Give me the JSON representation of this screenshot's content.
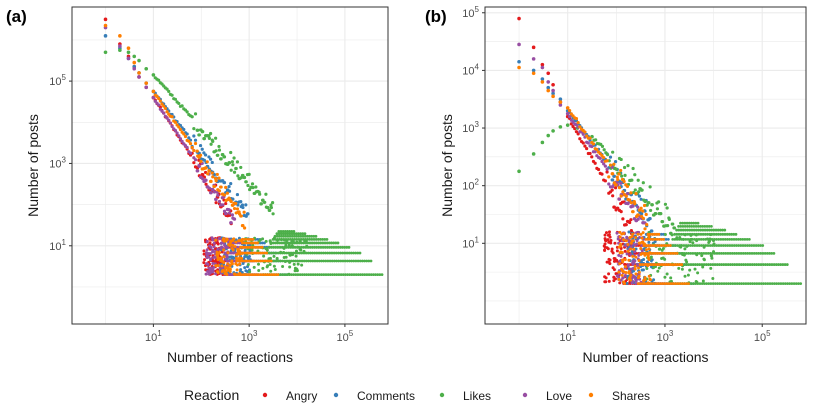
{
  "legend": {
    "title": "Reaction",
    "items": [
      {
        "name": "Angry",
        "color": "#e41a1c"
      },
      {
        "name": "Comments",
        "color": "#377eb8"
      },
      {
        "name": "Likes",
        "color": "#4daf4a"
      },
      {
        "name": "Love",
        "color": "#984ea3"
      },
      {
        "name": "Shares",
        "color": "#ff7f00"
      }
    ]
  },
  "chart_data": [
    {
      "panel_label": "(a)",
      "type": "scatter",
      "scale": "log-log",
      "xlabel": "Number of reactions",
      "ylabel": "Number of posts",
      "xlim_log10": [
        -0.7,
        5.9
      ],
      "ylim_log10": [
        -0.9,
        6.8
      ],
      "x_ticks": [
        {
          "exp": 1,
          "label": "10",
          "sup": "1"
        },
        {
          "exp": 3,
          "label": "10",
          "sup": "3"
        },
        {
          "exp": 5,
          "label": "10",
          "sup": "5"
        }
      ],
      "y_ticks": [
        {
          "exp": 1,
          "label": "10",
          "sup": "1"
        },
        {
          "exp": 3,
          "label": "10",
          "sup": "3"
        },
        {
          "exp": 5,
          "label": "10",
          "sup": "5"
        }
      ],
      "series": [
        {
          "name": "Angry",
          "head": [
            [
              0,
              6.5
            ],
            [
              0.3,
              5.9
            ],
            [
              0.48,
              5.6
            ],
            [
              0.6,
              5.35
            ],
            [
              0.7,
              5.1
            ],
            [
              0.85,
              4.85
            ],
            [
              1.0,
              4.6
            ]
          ],
          "slope": -1.8,
          "tail_end": 2.65,
          "floor_logy": 0.3,
          "max_logx": 3.0,
          "bands": 4
        },
        {
          "name": "Comments",
          "head": [
            [
              0,
              6.1
            ],
            [
              0.3,
              5.8
            ],
            [
              0.48,
              5.55
            ],
            [
              0.6,
              5.35
            ],
            [
              0.7,
              5.2
            ],
            [
              0.85,
              4.95
            ],
            [
              1.0,
              4.75
            ]
          ],
          "slope": -1.5,
          "tail_end": 3.0,
          "floor_logy": 0.3,
          "max_logx": 3.8,
          "bands": 6
        },
        {
          "name": "Likes",
          "head": [
            [
              0,
              5.7
            ],
            [
              0.3,
              5.75
            ],
            [
              0.48,
              5.7
            ],
            [
              0.6,
              5.6
            ],
            [
              0.7,
              5.5
            ],
            [
              0.85,
              5.3
            ],
            [
              1.0,
              5.15
            ]
          ],
          "slope": -1.3,
          "tail_end": 3.5,
          "floor_logy": 0.3,
          "max_logx": 5.8,
          "bands": 9
        },
        {
          "name": "Love",
          "head": [
            [
              0,
              6.3
            ],
            [
              0.3,
              5.85
            ],
            [
              0.48,
              5.55
            ],
            [
              0.6,
              5.3
            ],
            [
              0.7,
              5.1
            ],
            [
              0.85,
              4.85
            ],
            [
              1.0,
              4.6
            ]
          ],
          "slope": -1.75,
          "tail_end": 2.7,
          "floor_logy": 0.3,
          "max_logx": 3.2,
          "bands": 5
        },
        {
          "name": "Shares",
          "head": [
            [
              0,
              6.35
            ],
            [
              0.3,
              6.1
            ],
            [
              0.48,
              5.8
            ],
            [
              0.6,
              5.45
            ],
            [
              0.7,
              5.2
            ],
            [
              0.85,
              4.95
            ],
            [
              1.0,
              4.75
            ]
          ],
          "slope": -1.65,
          "tail_end": 2.9,
          "floor_logy": 0.3,
          "max_logx": 3.6,
          "bands": 6
        }
      ]
    },
    {
      "panel_label": "(b)",
      "type": "scatter",
      "scale": "log-log",
      "xlabel": "Number of reactions",
      "ylabel": "Number of posts",
      "xlim_log10": [
        -0.7,
        5.9
      ],
      "ylim_log10": [
        -0.4,
        5.1
      ],
      "x_ticks": [
        {
          "exp": 1,
          "label": "10",
          "sup": "1"
        },
        {
          "exp": 3,
          "label": "10",
          "sup": "3"
        },
        {
          "exp": 5,
          "label": "10",
          "sup": "5"
        }
      ],
      "y_ticks": [
        {
          "exp": 1,
          "label": "10",
          "sup": "1"
        },
        {
          "exp": 2,
          "label": "10",
          "sup": "2"
        },
        {
          "exp": 3,
          "label": "10",
          "sup": "3"
        },
        {
          "exp": 4,
          "label": "10",
          "sup": "4"
        },
        {
          "exp": 5,
          "label": "10",
          "sup": "5"
        }
      ],
      "series": [
        {
          "name": "Angry",
          "head": [
            [
              0,
              4.9
            ],
            [
              0.3,
              4.4
            ],
            [
              0.48,
              4.1
            ],
            [
              0.6,
              3.95
            ],
            [
              0.7,
              3.75
            ],
            [
              0.85,
              3.45
            ],
            [
              1.0,
              3.2
            ]
          ],
          "slope": -1.45,
          "tail_end": 2.35,
          "floor_logy": 0.3,
          "max_logx": 3.0,
          "bands": 4
        },
        {
          "name": "Comments",
          "head": [
            [
              0,
              4.15
            ],
            [
              0.3,
              4.0
            ],
            [
              0.48,
              3.85
            ],
            [
              0.6,
              3.7
            ],
            [
              0.7,
              3.6
            ],
            [
              0.85,
              3.5
            ],
            [
              1.0,
              3.3
            ]
          ],
          "slope": -1.1,
          "tail_end": 2.75,
          "floor_logy": 0.3,
          "max_logx": 3.6,
          "bands": 6
        },
        {
          "name": "Likes",
          "head": [
            [
              0,
              2.25
            ],
            [
              0.3,
              2.55
            ],
            [
              0.48,
              2.75
            ],
            [
              0.6,
              2.87
            ],
            [
              0.7,
              2.95
            ],
            [
              0.85,
              3.02
            ],
            [
              1.0,
              3.05
            ],
            [
              1.2,
              3.0
            ],
            [
              1.5,
              2.85
            ]
          ],
          "slope": -0.9,
          "tail_end": 3.2,
          "floor_logy": 0.3,
          "max_logx": 5.8,
          "bands": 9
        },
        {
          "name": "Love",
          "head": [
            [
              0,
              4.45
            ],
            [
              0.3,
              4.2
            ],
            [
              0.48,
              4.05
            ],
            [
              0.6,
              3.8
            ],
            [
              0.7,
              3.65
            ],
            [
              0.85,
              3.4
            ],
            [
              1.0,
              3.25
            ]
          ],
          "slope": -1.2,
          "tail_end": 2.6,
          "floor_logy": 0.3,
          "max_logx": 3.2,
          "bands": 5
        },
        {
          "name": "Shares",
          "head": [
            [
              0,
              4.05
            ],
            [
              0.3,
              3.95
            ],
            [
              0.48,
              3.8
            ],
            [
              0.6,
              3.65
            ],
            [
              0.7,
              3.55
            ],
            [
              0.85,
              3.45
            ],
            [
              1.0,
              3.35
            ]
          ],
          "slope": -1.2,
          "tail_end": 2.65,
          "floor_logy": 0.3,
          "max_logx": 3.5,
          "bands": 6
        }
      ]
    }
  ]
}
